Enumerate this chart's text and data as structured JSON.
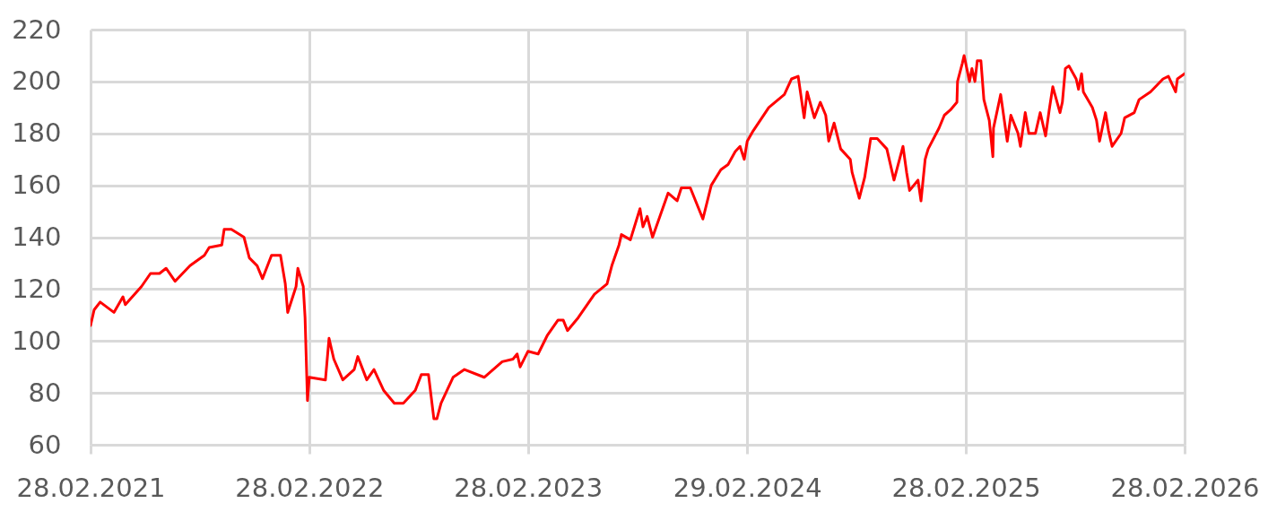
{
  "chart_data": {
    "type": "line",
    "x": [
      "2021-02-28",
      "2021-03-06",
      "2021-03-16",
      "2021-04-08",
      "2021-04-23",
      "2021-04-27",
      "2021-05-24",
      "2021-06-08",
      "2021-06-23",
      "2021-07-04",
      "2021-07-19",
      "2021-08-13",
      "2021-09-06",
      "2021-09-14",
      "2021-10-05",
      "2021-10-09",
      "2021-10-21",
      "2021-11-11",
      "2021-11-20",
      "2021-12-03",
      "2021-12-12",
      "2021-12-27",
      "2022-01-11",
      "2022-01-19",
      "2022-01-23",
      "2022-02-06",
      "2022-02-09",
      "2022-02-18",
      "2022-02-21",
      "2022-02-25",
      "2022-02-28",
      "2022-03-27",
      "2022-04-02",
      "2022-04-10",
      "2022-04-25",
      "2022-05-14",
      "2022-05-20",
      "2022-06-04",
      "2022-06-16",
      "2022-07-02",
      "2022-07-20",
      "2022-08-04",
      "2022-08-24",
      "2022-09-03",
      "2022-09-15",
      "2022-09-24",
      "2022-09-29",
      "2022-10-06",
      "2022-10-26",
      "2022-11-14",
      "2022-12-17",
      "2023-01-16",
      "2023-02-03",
      "2023-02-10",
      "2023-02-15",
      "2023-02-28",
      "2023-03-17",
      "2023-04-01",
      "2023-04-19",
      "2023-04-28",
      "2023-05-05",
      "2023-05-23",
      "2023-06-19",
      "2023-07-10",
      "2023-07-18",
      "2023-07-30",
      "2023-08-03",
      "2023-08-18",
      "2023-09-03",
      "2023-09-08",
      "2023-09-15",
      "2023-09-24",
      "2023-10-20",
      "2023-11-04",
      "2023-11-11",
      "2023-11-26",
      "2023-12-17",
      "2023-12-31",
      "2024-01-16",
      "2024-01-28",
      "2024-02-09",
      "2024-02-17",
      "2024-02-24",
      "2024-02-29",
      "2024-03-10",
      "2024-04-05",
      "2024-05-01",
      "2024-05-13",
      "2024-05-24",
      "2024-06-03",
      "2024-06-08",
      "2024-06-20",
      "2024-06-30",
      "2024-07-09",
      "2024-07-14",
      "2024-07-23",
      "2024-08-03",
      "2024-08-19",
      "2024-08-22",
      "2024-09-03",
      "2024-09-12",
      "2024-09-22",
      "2024-10-03",
      "2024-10-19",
      "2024-10-31",
      "2024-11-15",
      "2024-11-21",
      "2024-11-26",
      "2024-12-10",
      "2024-12-15",
      "2024-12-22",
      "2024-12-27",
      "2025-01-14",
      "2025-01-23",
      "2025-02-02",
      "2025-02-13",
      "2025-02-14",
      "2025-02-22",
      "2025-02-25",
      "2025-03-06",
      "2025-03-10",
      "2025-03-15",
      "2025-03-19",
      "2025-03-25",
      "2025-03-30",
      "2025-04-08",
      "2025-04-14",
      "2025-04-15",
      "2025-04-27",
      "2025-05-08",
      "2025-05-14",
      "2025-05-26",
      "2025-05-30",
      "2025-06-07",
      "2025-06-13",
      "2025-06-24",
      "2025-07-02",
      "2025-07-11",
      "2025-07-17",
      "2025-07-23",
      "2025-08-04",
      "2025-08-08",
      "2025-08-13",
      "2025-08-19",
      "2025-08-31",
      "2025-09-04",
      "2025-09-09",
      "2025-09-12",
      "2025-09-27",
      "2025-10-04",
      "2025-10-09",
      "2025-10-19",
      "2025-10-24",
      "2025-10-30",
      "2025-11-14",
      "2025-11-20",
      "2025-12-06",
      "2025-12-14",
      "2026-01-02",
      "2026-01-23",
      "2026-02-01",
      "2026-02-13",
      "2026-02-16",
      "2026-02-28"
    ],
    "series": [
      {
        "color": "#ff0000",
        "values": [
          106,
          112,
          115,
          111,
          117,
          114,
          121,
          126,
          126,
          128,
          123,
          129,
          133,
          136,
          137,
          143,
          143,
          140,
          132,
          129,
          124,
          133,
          133,
          122,
          111,
          121,
          128,
          121,
          109,
          77,
          86,
          85,
          101,
          93,
          85,
          89,
          94,
          85,
          89,
          81,
          76,
          76,
          81,
          87,
          87,
          70,
          70,
          76,
          86,
          89,
          86,
          92,
          93,
          95,
          90,
          96,
          95,
          102,
          108,
          108,
          104,
          109,
          118,
          122,
          129,
          137,
          141,
          139,
          151,
          144,
          148,
          140,
          157,
          154,
          159,
          159,
          147,
          160,
          166,
          168,
          173,
          175,
          170,
          177,
          181,
          190,
          195,
          201,
          202,
          186,
          196,
          186,
          192,
          187,
          177,
          184,
          174,
          170,
          165,
          155,
          163,
          178,
          178,
          174,
          162,
          175,
          165,
          158,
          162,
          154,
          170,
          174,
          182,
          187,
          189,
          192,
          200,
          207,
          210,
          200,
          205,
          200,
          208,
          208,
          193,
          185,
          171,
          182,
          195,
          177,
          187,
          180,
          175,
          188,
          180,
          180,
          188,
          179,
          189,
          198,
          188,
          192,
          205,
          206,
          201,
          197,
          203,
          196,
          190,
          185,
          177,
          188,
          181,
          175,
          180,
          186,
          188,
          193,
          196,
          201,
          202,
          196,
          201,
          203
        ]
      }
    ],
    "xlim": [
      "2021-02-28",
      "2026-02-28"
    ],
    "xticks": [
      {
        "value": "2021-02-28",
        "label": "28.02.2021"
      },
      {
        "value": "2022-02-28",
        "label": "28.02.2022"
      },
      {
        "value": "2023-02-28",
        "label": "28.02.2023"
      },
      {
        "value": "2024-02-29",
        "label": "29.02.2024"
      },
      {
        "value": "2025-02-28",
        "label": "28.02.2025"
      },
      {
        "value": "2026-02-28",
        "label": "28.02.2026"
      }
    ],
    "ylim": [
      60,
      220
    ],
    "yticks": [
      60,
      80,
      100,
      120,
      140,
      160,
      180,
      200,
      220
    ],
    "grid": true
  }
}
